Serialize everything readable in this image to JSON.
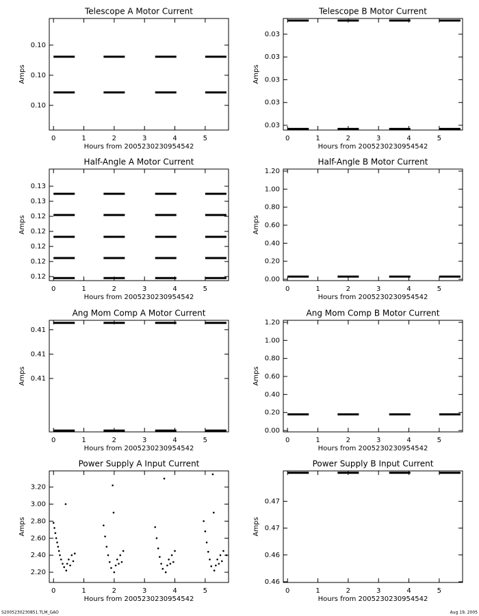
{
  "footer": {
    "left": "S2005230230851.TLM_GAO",
    "right": "Aug 19, 2005"
  },
  "chart_data": [
    {
      "type": "line",
      "title": "Telescope A Motor Current",
      "x_label": "Hours from 2005230230954542",
      "y_label": "Amps",
      "color": "#000000",
      "xlim": [
        -0.14,
        5.77
      ],
      "xticks": [
        0,
        1,
        2,
        3,
        4,
        5
      ],
      "ylim": [
        0.09636,
        0.10377
      ],
      "yticks": [
        {
          "value": 0.098,
          "label": "0.10"
        },
        {
          "value": 0.1,
          "label": "0.10"
        },
        {
          "value": 0.102,
          "label": "0.10"
        }
      ],
      "x": [
        0.0,
        0.7,
        1.15,
        1.65,
        2.35,
        2.85,
        3.35,
        4.05,
        4.55,
        5.0,
        5.7
      ],
      "series": [
        {
          "values": [
            0.10123,
            0.10123,
            null,
            0.10123,
            0.10123,
            null,
            0.10123,
            0.10123,
            null,
            0.10123,
            0.10123
          ]
        },
        {
          "values": [
            0.09886,
            0.09886,
            null,
            0.09886,
            0.09886,
            null,
            0.09886,
            0.09886,
            null,
            0.09886,
            0.09886
          ]
        }
      ]
    },
    {
      "type": "line",
      "title": "Telescope B Motor Current",
      "x_label": "Hours from 2005230230954542",
      "y_label": "Amps",
      "color": "#000000",
      "xlim": [
        -0.14,
        5.77
      ],
      "xticks": [
        0,
        1,
        2,
        3,
        4,
        5
      ],
      "ylim": [
        0.02879,
        0.03369
      ],
      "yticks": [
        {
          "value": 0.029,
          "label": "0.03"
        },
        {
          "value": 0.03,
          "label": "0.03"
        },
        {
          "value": 0.031,
          "label": "0.03"
        },
        {
          "value": 0.032,
          "label": "0.03"
        },
        {
          "value": 0.033,
          "label": "0.03"
        }
      ],
      "x": [
        0.0,
        0.7,
        1.15,
        1.65,
        2.35,
        2.85,
        3.35,
        4.05,
        4.55,
        5.0,
        5.7
      ],
      "series": [
        {
          "values": [
            0.0336,
            0.0336,
            null,
            0.0336,
            0.0336,
            null,
            0.0336,
            0.0336,
            null,
            0.0336,
            0.0336
          ]
        },
        {
          "values": [
            0.02884,
            0.02884,
            null,
            0.02884,
            0.02884,
            null,
            0.02884,
            0.02884,
            null,
            0.02884,
            0.02884
          ]
        }
      ]
    },
    {
      "type": "line",
      "title": "Half-Angle A Motor Current",
      "x_label": "Hours from 2005230230954542",
      "y_label": "Amps",
      "color": "#000000",
      "xlim": [
        -0.14,
        5.77
      ],
      "xticks": [
        0,
        1,
        2,
        3,
        4,
        5
      ],
      "ylim": [
        0.12023,
        0.12764
      ],
      "yticks": [
        {
          "value": 0.1205,
          "label": "0.12"
        },
        {
          "value": 0.1215,
          "label": "0.12"
        },
        {
          "value": 0.1225,
          "label": "0.12"
        },
        {
          "value": 0.1235,
          "label": "0.12"
        },
        {
          "value": 0.1245,
          "label": "0.12"
        },
        {
          "value": 0.1255,
          "label": "0.13"
        },
        {
          "value": 0.1265,
          "label": "0.13"
        }
      ],
      "x": [
        0.0,
        0.7,
        1.15,
        1.65,
        2.35,
        2.85,
        3.35,
        4.05,
        4.55,
        5.0,
        5.7
      ],
      "series": [
        {
          "values": [
            0.126,
            0.126,
            null,
            0.126,
            0.126,
            null,
            0.126,
            0.126,
            null,
            0.126,
            0.126
          ]
        },
        {
          "values": [
            0.12459,
            0.12459,
            null,
            0.12459,
            0.12459,
            null,
            0.12459,
            0.12459,
            null,
            0.12459,
            0.12459
          ]
        },
        {
          "values": [
            0.12314,
            0.12314,
            null,
            0.12314,
            0.12314,
            null,
            0.12314,
            0.12314,
            null,
            0.12314,
            0.12314
          ]
        },
        {
          "values": [
            0.12173,
            0.12173,
            null,
            0.12173,
            0.12173,
            null,
            0.12173,
            0.12173,
            null,
            0.12173,
            0.12173
          ]
        },
        {
          "values": [
            0.1204,
            0.1204,
            null,
            0.1204,
            0.1204,
            null,
            0.1204,
            0.1204,
            null,
            0.1204,
            0.1204
          ]
        }
      ]
    },
    {
      "type": "line",
      "title": "Half-Angle B Motor Current",
      "x_label": "Hours from 2005230230954542",
      "y_label": "Amps",
      "color": "#000000",
      "xlim": [
        -0.14,
        5.77
      ],
      "xticks": [
        0,
        1,
        2,
        3,
        4,
        5
      ],
      "ylim": [
        -0.015,
        1.2226
      ],
      "yticks": [
        {
          "value": 0,
          "label": "0.00"
        },
        {
          "value": 0.2,
          "label": "0.20"
        },
        {
          "value": 0.4,
          "label": "0.40"
        },
        {
          "value": 0.6,
          "label": "0.60"
        },
        {
          "value": 0.8,
          "label": "0.80"
        },
        {
          "value": 1,
          "label": "1.00"
        },
        {
          "value": 1.2,
          "label": "1.20"
        }
      ],
      "x": [
        0.0,
        0.7,
        1.15,
        1.65,
        2.35,
        2.85,
        3.35,
        4.05,
        4.55,
        5.0,
        5.7
      ],
      "series": [
        {
          "values": [
            0.03,
            0.03,
            null,
            0.03,
            0.03,
            null,
            0.03,
            0.03,
            null,
            0.03,
            0.03
          ]
        }
      ]
    },
    {
      "type": "line",
      "title": "Ang Mom Comp A Motor Current",
      "x_label": "Hours from 2005230230954542",
      "y_label": "Amps",
      "color": "#000000",
      "xlim": [
        -0.14,
        5.77
      ],
      "xticks": [
        0,
        1,
        2,
        3,
        4,
        5
      ],
      "ylim": [
        0.40621,
        0.41308
      ],
      "yticks": [
        {
          "value": 0.4095,
          "label": "0.41"
        },
        {
          "value": 0.411,
          "label": "0.41"
        },
        {
          "value": 0.4125,
          "label": "0.41"
        }
      ],
      "x": [
        0.0,
        0.7,
        1.15,
        1.65,
        2.35,
        2.85,
        3.35,
        4.05,
        4.55,
        5.0,
        5.7
      ],
      "series": [
        {
          "values": [
            0.41292,
            0.41292,
            null,
            0.41292,
            0.41292,
            null,
            0.41292,
            0.41292,
            null,
            0.41292,
            0.41292
          ]
        },
        {
          "values": [
            0.40629,
            0.40629,
            null,
            0.40629,
            0.40629,
            null,
            0.40629,
            0.40629,
            null,
            0.40629,
            0.40629
          ]
        }
      ]
    },
    {
      "type": "line",
      "title": "Ang Mom Comp B Motor Current",
      "x_label": "Hours from 2005230230954542",
      "y_label": "Amps",
      "color": "#000000",
      "xlim": [
        -0.14,
        5.77
      ],
      "xticks": [
        0,
        1,
        2,
        3,
        4,
        5
      ],
      "ylim": [
        -0.015,
        1.2226
      ],
      "yticks": [
        {
          "value": 0,
          "label": "0.00"
        },
        {
          "value": 0.2,
          "label": "0.20"
        },
        {
          "value": 0.4,
          "label": "0.40"
        },
        {
          "value": 0.6,
          "label": "0.60"
        },
        {
          "value": 0.8,
          "label": "0.80"
        },
        {
          "value": 1,
          "label": "1.00"
        },
        {
          "value": 1.2,
          "label": "1.20"
        }
      ],
      "x": [
        0.0,
        0.7,
        1.15,
        1.65,
        2.35,
        2.85,
        3.35,
        4.05,
        4.55,
        5.0,
        5.7
      ],
      "series": [
        {
          "values": [
            0.18,
            0.18,
            null,
            0.18,
            0.18,
            null,
            0.18,
            0.18,
            null,
            0.18,
            0.18
          ]
        }
      ]
    },
    {
      "type": "scatter",
      "title": "Power Supply A Input Current",
      "x_label": "Hours from 2005230230954542",
      "y_label": "Amps",
      "color": "#000000",
      "xlim": [
        -0.14,
        5.77
      ],
      "xticks": [
        0,
        1,
        2,
        3,
        4,
        5
      ],
      "ylim": [
        2.08,
        3.39
      ],
      "yticks": [
        {
          "value": 2.2,
          "label": "2.20"
        },
        {
          "value": 2.4,
          "label": "2.40"
        },
        {
          "value": 2.6,
          "label": "2.60"
        },
        {
          "value": 2.8,
          "label": "2.80"
        },
        {
          "value": 3,
          "label": "3.00"
        },
        {
          "value": 3.2,
          "label": "3.20"
        }
      ],
      "x": [
        0.0,
        0.03,
        0.06,
        0.09,
        0.12,
        0.15,
        0.18,
        0.21,
        0.25,
        0.3,
        0.35,
        0.4,
        0.42,
        0.45,
        0.5,
        0.55,
        0.6,
        0.65,
        0.7,
        1.65,
        1.7,
        1.75,
        1.8,
        1.85,
        1.9,
        1.95,
        1.98,
        2.0,
        2.05,
        2.1,
        2.15,
        2.2,
        2.25,
        2.3,
        3.35,
        3.4,
        3.45,
        3.5,
        3.55,
        3.6,
        3.65,
        3.7,
        3.75,
        3.8,
        3.85,
        3.9,
        3.95,
        4.0,
        4.95,
        5.0,
        5.05,
        5.1,
        5.15,
        5.2,
        5.25,
        5.28,
        5.3,
        5.35,
        5.4,
        5.45,
        5.5,
        5.55,
        5.6,
        5.7
      ],
      "values": [
        2.78,
        2.72,
        2.66,
        2.6,
        2.55,
        2.5,
        2.45,
        2.4,
        2.35,
        2.3,
        2.26,
        3.0,
        2.22,
        2.3,
        2.35,
        2.28,
        2.4,
        2.33,
        2.42,
        2.75,
        2.62,
        2.5,
        2.4,
        2.32,
        2.25,
        3.22,
        2.9,
        2.2,
        2.28,
        2.35,
        2.3,
        2.4,
        2.32,
        2.45,
        2.73,
        2.6,
        2.48,
        2.38,
        2.3,
        2.24,
        3.3,
        2.2,
        2.28,
        2.35,
        2.3,
        2.4,
        2.32,
        2.45,
        2.8,
        2.68,
        2.55,
        2.44,
        2.35,
        2.27,
        3.35,
        2.9,
        2.22,
        2.28,
        2.35,
        2.3,
        2.4,
        2.33,
        2.45,
        2.4
      ]
    },
    {
      "type": "line",
      "title": "Power Supply B Input Current",
      "x_label": "Hours from 2005230230954542",
      "y_label": "Amps",
      "color": "#000000",
      "xlim": [
        -0.14,
        5.77
      ],
      "xticks": [
        0,
        1,
        2,
        3,
        4,
        5
      ],
      "ylim": [
        0.45942,
        0.4719
      ],
      "yticks": [
        {
          "value": 0.4595,
          "label": "0.46"
        },
        {
          "value": 0.4625,
          "label": "0.46"
        },
        {
          "value": 0.4655,
          "label": "0.47"
        },
        {
          "value": 0.4685,
          "label": "0.47"
        }
      ],
      "x": [
        0.0,
        0.7,
        1.15,
        1.65,
        2.35,
        2.85,
        3.35,
        4.05,
        4.55,
        5.0,
        5.7
      ],
      "series": [
        {
          "values": [
            0.47169,
            0.47169,
            null,
            0.47169,
            0.47169,
            null,
            0.47169,
            0.47169,
            null,
            0.47169,
            0.47169
          ]
        }
      ]
    }
  ]
}
